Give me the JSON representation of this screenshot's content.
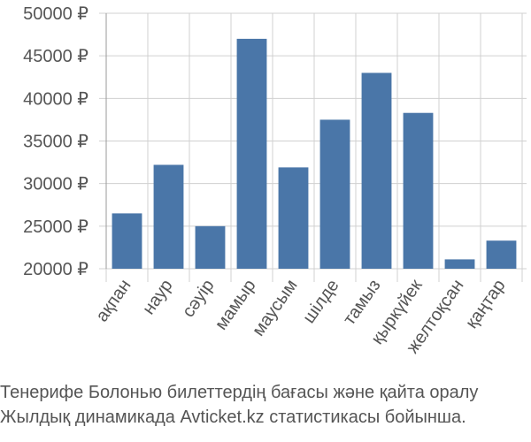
{
  "chart_data": {
    "type": "bar",
    "categories": [
      "ақпан",
      "наур",
      "сәуір",
      "мамыр",
      "маусым",
      "шілде",
      "тамыз",
      "қыркүйек",
      "желтоқсан",
      "қаңтар"
    ],
    "values": [
      26500,
      32200,
      25000,
      47000,
      31900,
      37500,
      43000,
      38300,
      21100,
      23300
    ],
    "ylim": [
      20000,
      50000
    ],
    "y_ticks": [
      {
        "value": 20000,
        "label": "20000 ₽"
      },
      {
        "value": 25000,
        "label": "25000 ₽"
      },
      {
        "value": 30000,
        "label": "30000 ₽"
      },
      {
        "value": 35000,
        "label": "35000 ₽"
      },
      {
        "value": 40000,
        "label": "40000 ₽"
      },
      {
        "value": 45000,
        "label": "45000 ₽"
      },
      {
        "value": 50000,
        "label": "50000 ₽"
      }
    ],
    "grid": true,
    "bar_color": "#4a76a8",
    "grid_color": "#d0d0d0"
  },
  "caption": {
    "line1": "Тенерифе Болонью билеттердің бағасы және қайта оралу",
    "line2": "Жылдық динамикада Avticket.kz статистикасы бойынша."
  }
}
